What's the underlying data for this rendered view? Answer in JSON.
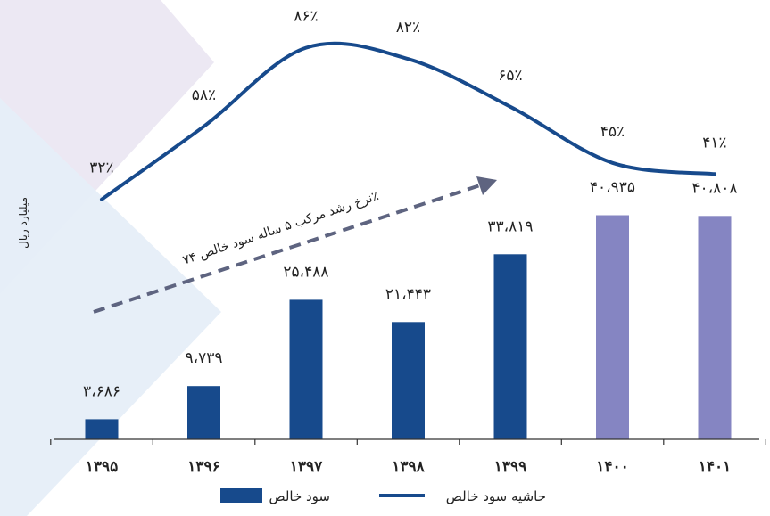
{
  "chart_data": {
    "type": "bar",
    "ylabel": "میلیارد ریال",
    "categories": [
      "۱۳۹۵",
      "۱۳۹۶",
      "۱۳۹۷",
      "۱۳۹۸",
      "۱۳۹۹",
      "۱۴۰۰",
      "۱۴۰۱"
    ],
    "series": [
      {
        "name": "سود خالص",
        "type": "bar",
        "values": [
          3686,
          9739,
          25488,
          21443,
          33819,
          40935,
          40808
        ],
        "value_labels": [
          "۳،۶۸۶",
          "۹،۷۳۹",
          "۲۵،۴۸۸",
          "۲۱،۴۴۳",
          "۳۳،۸۱۹",
          "۴۰،۹۳۵",
          "۴۰،۸۰۸"
        ],
        "colors": [
          "#174A8C",
          "#174A8C",
          "#174A8C",
          "#174A8C",
          "#174A8C",
          "#8585C2",
          "#8585C2"
        ]
      },
      {
        "name": "حاشیه سود خالص",
        "type": "line",
        "values": [
          32,
          58,
          86,
          82,
          65,
          45,
          41
        ],
        "value_labels": [
          "۳۲٪",
          "۵۸٪",
          "۸۶٪",
          "۸۲٪",
          "۶۵٪",
          "۴۵٪",
          "۴۱٪"
        ],
        "color": "#174A8C"
      }
    ],
    "ylim": [
      0,
      42000
    ],
    "grid": false,
    "legend_position": "bottom",
    "annotation": "نرخ رشد مرکب ۵ ساله سود خالص ۷۴٪"
  }
}
